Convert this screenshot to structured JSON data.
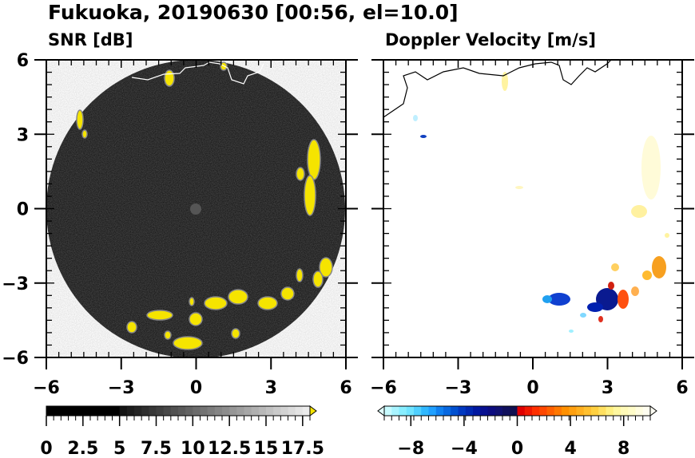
{
  "chart_data": {
    "type": "heatmap",
    "title": "Fukuoka, 20190630 [00:56, el=10.0]",
    "panels": [
      {
        "name": "snr",
        "subtitle": "SNR [dB]",
        "xlim": [
          -6,
          6
        ],
        "ylim": [
          -6,
          6
        ],
        "xticks": [
          "−6",
          "−3",
          "0",
          "3",
          "6"
        ],
        "yticks": [
          "6",
          "3",
          "0",
          "−3",
          "−6"
        ],
        "xtick_values": [
          -6,
          -3,
          0,
          3,
          6
        ],
        "ytick_values": [
          6,
          3,
          0,
          -3,
          -6
        ],
        "colorbar": {
          "min": 0,
          "max": 18,
          "extend": "max",
          "tick_values": [
            0,
            2.5,
            5,
            7.5,
            10,
            12.5,
            15,
            17.5
          ],
          "tick_labels": [
            "0",
            "2.5",
            "5",
            "7.5",
            "10",
            "12.5",
            "15",
            "17.5"
          ],
          "over_color": "#f5e400"
        },
        "range_ring_radius_km": 6,
        "echo_color": "#f5e400"
      },
      {
        "name": "doppler",
        "subtitle": "Doppler Velocity [m/s]",
        "xlim": [
          -6,
          6
        ],
        "ylim": [
          -6,
          6
        ],
        "xticks": [
          "−6",
          "−3",
          "0",
          "3",
          "6"
        ],
        "xtick_values": [
          -6,
          -3,
          0,
          3,
          6
        ],
        "colorbar": {
          "min": -10,
          "max": 10,
          "extend": "both",
          "tick_values": [
            -8,
            -4,
            0,
            4,
            8
          ],
          "tick_labels": [
            "−8",
            "−4",
            "0",
            "4",
            "8"
          ]
        }
      }
    ]
  }
}
